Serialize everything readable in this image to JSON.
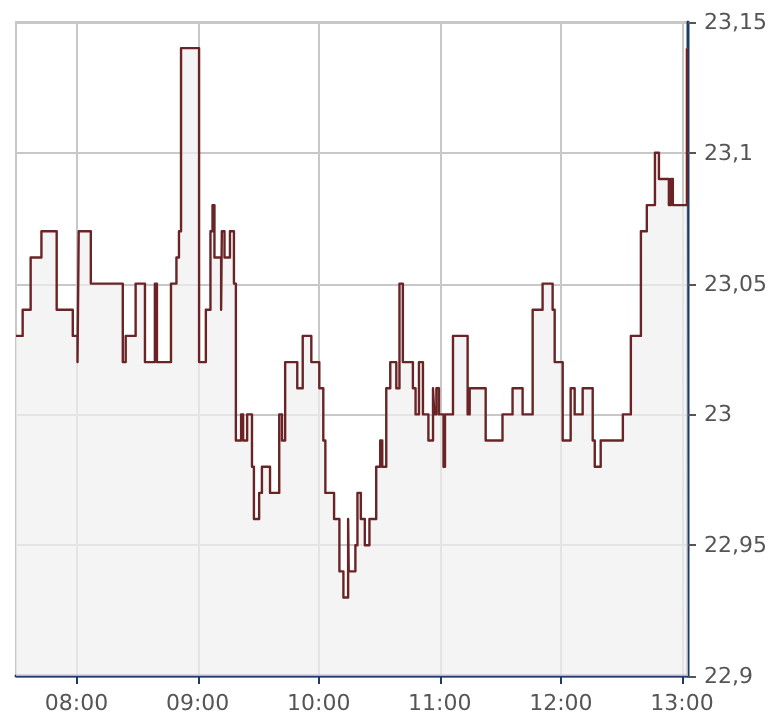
{
  "chart_data": {
    "type": "step",
    "x": [
      7.5,
      7.555,
      7.621,
      7.71,
      7.836,
      7.969,
      8.008,
      8.018,
      8.118,
      8.382,
      8.406,
      8.488,
      8.565,
      8.647,
      8.664,
      8.78,
      8.825,
      8.846,
      8.863,
      9.012,
      9.068,
      9.106,
      9.123,
      9.139,
      9.161,
      9.194,
      9.2,
      9.222,
      9.267,
      9.3,
      9.316,
      9.359,
      9.376,
      9.409,
      9.449,
      9.465,
      9.508,
      9.531,
      9.598,
      9.674,
      9.697,
      9.723,
      9.823,
      9.868,
      9.939,
      10.005,
      10.038,
      10.055,
      10.127,
      10.171,
      10.204,
      10.243,
      10.248,
      10.303,
      10.32,
      10.348,
      10.381,
      10.419,
      10.475,
      10.508,
      10.525,
      10.558,
      10.591,
      10.641,
      10.667,
      10.695,
      10.778,
      10.8,
      10.828,
      10.861,
      10.906,
      10.944,
      10.955,
      10.972,
      10.993,
      11.031,
      11.043,
      11.109,
      11.23,
      11.247,
      11.379,
      11.518,
      11.601,
      11.684,
      11.767,
      11.849,
      11.932,
      11.949,
      12.015,
      12.081,
      12.114,
      12.18,
      12.263,
      12.28,
      12.329,
      12.512,
      12.578,
      12.661,
      12.71,
      12.777,
      12.81,
      12.892,
      12.909,
      12.925,
      13.041,
      13.05
    ],
    "series": [
      {
        "type": "area",
        "color": "#f0f0f0",
        "values": [
          23.03,
          23.04,
          23.06,
          23.07,
          23.04,
          23.03,
          23.02,
          23.07,
          23.05,
          23.02,
          23.03,
          23.05,
          23.02,
          23.05,
          23.02,
          23.05,
          23.06,
          23.07,
          23.14,
          23.02,
          23.04,
          23.07,
          23.08,
          23.06,
          23.06,
          23.04,
          23.07,
          23.06,
          23.07,
          23.05,
          22.99,
          23.0,
          22.99,
          23.0,
          22.98,
          22.96,
          22.97,
          22.98,
          22.97,
          23.0,
          22.99,
          23.02,
          23.01,
          23.03,
          23.02,
          23.01,
          22.99,
          22.97,
          22.96,
          22.94,
          22.93,
          22.96,
          22.94,
          22.95,
          22.97,
          22.96,
          22.95,
          22.96,
          22.98,
          22.99,
          22.98,
          23.01,
          23.02,
          23.01,
          23.05,
          23.02,
          23.01,
          23.0,
          23.02,
          23.0,
          22.99,
          23.01,
          23.0,
          23.01,
          23.0,
          22.98,
          23.0,
          23.03,
          23.0,
          23.01,
          22.99,
          23.0,
          23.01,
          23.0,
          23.04,
          23.05,
          23.04,
          23.02,
          22.99,
          23.01,
          23.0,
          23.01,
          22.99,
          22.98,
          22.99,
          23.0,
          23.03,
          23.07,
          23.08,
          23.1,
          23.09,
          23.08,
          23.09,
          23.08,
          23.14,
          23.14
        ]
      },
      {
        "type": "step",
        "color": "#6b2426",
        "values": [
          23.03,
          23.04,
          23.06,
          23.07,
          23.04,
          23.03,
          23.02,
          23.07,
          23.05,
          23.02,
          23.03,
          23.05,
          23.02,
          23.05,
          23.02,
          23.05,
          23.06,
          23.07,
          23.14,
          23.02,
          23.04,
          23.07,
          23.08,
          23.06,
          23.06,
          23.04,
          23.07,
          23.06,
          23.07,
          23.05,
          22.99,
          23.0,
          22.99,
          23.0,
          22.98,
          22.96,
          22.97,
          22.98,
          22.97,
          23.0,
          22.99,
          23.02,
          23.01,
          23.03,
          23.02,
          23.01,
          22.99,
          22.97,
          22.96,
          22.94,
          22.93,
          22.96,
          22.94,
          22.95,
          22.97,
          22.96,
          22.95,
          22.96,
          22.98,
          22.99,
          22.98,
          23.01,
          23.02,
          23.01,
          23.05,
          23.02,
          23.01,
          23.0,
          23.02,
          23.0,
          22.99,
          23.01,
          23.0,
          23.01,
          23.0,
          22.98,
          23.0,
          23.03,
          23.0,
          23.01,
          22.99,
          23.0,
          23.01,
          23.0,
          23.04,
          23.05,
          23.04,
          23.02,
          22.99,
          23.01,
          23.0,
          23.01,
          22.99,
          22.98,
          22.99,
          23.0,
          23.03,
          23.07,
          23.08,
          23.1,
          23.09,
          23.08,
          23.09,
          23.08,
          23.14,
          23.14
        ]
      }
    ],
    "xlim": [
      7.5,
      13.05
    ],
    "xticks": [
      {
        "value": 8,
        "label": "08:00"
      },
      {
        "value": 9,
        "label": "09:00"
      },
      {
        "value": 10,
        "label": "10:00"
      },
      {
        "value": 11,
        "label": "11:00"
      },
      {
        "value": 12,
        "label": "12:00"
      },
      {
        "value": 13,
        "label": "13:00"
      }
    ],
    "ylim": [
      22.9,
      23.15
    ],
    "yticks": [
      {
        "value": 22.9,
        "label": "22,9"
      },
      {
        "value": 22.95,
        "label": "22,95"
      },
      23,
      {
        "value": 23.05,
        "label": "23,05"
      },
      {
        "value": 23.1,
        "label": "23,1"
      },
      {
        "value": 23.15,
        "label": "23,15"
      }
    ],
    "grid": true
  }
}
